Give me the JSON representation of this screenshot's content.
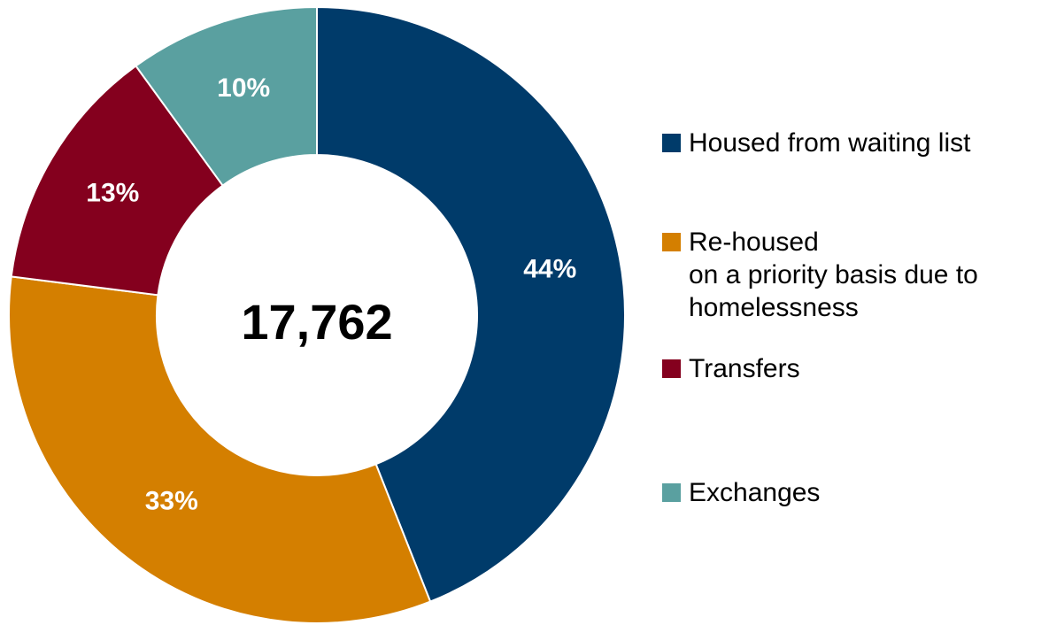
{
  "chart_data": {
    "type": "donut",
    "center_label": "17,762",
    "categories": [
      "Housed from waiting list",
      "Re-housed\non a priority basis due to homelessness",
      "Transfers",
      "Exchanges"
    ],
    "values": [
      44,
      33,
      13,
      10
    ],
    "value_labels": [
      "44%",
      "33%",
      "13%",
      "10%"
    ],
    "colors": [
      "#003b6a",
      "#d47f00",
      "#84001e",
      "#5aa0a0"
    ],
    "legend": "right"
  }
}
